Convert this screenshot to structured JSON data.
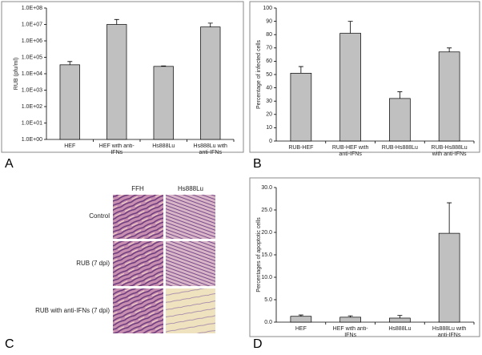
{
  "chart_data": [
    {
      "type": "bar",
      "ylabel": "RUB (pfu/ml)",
      "log_scale": true,
      "categories": [
        "HEF",
        "HEF with anti-IFNs",
        "Hs888Lu",
        "Hs888Lu with anti-IFNs"
      ],
      "values": [
        35000,
        10000000,
        28000,
        7000000
      ],
      "errors": [
        20000,
        10000000,
        2000,
        5000000
      ],
      "color": "#c0c0c0",
      "ylim": [
        1,
        100000000
      ],
      "yticks": [
        {
          "value": 1,
          "label": "1.0E+00"
        },
        {
          "value": 10,
          "label": "1.0E+01"
        },
        {
          "value": 100,
          "label": "1.0E+02"
        },
        {
          "value": 1000,
          "label": "1.0E+03"
        },
        {
          "value": 10000,
          "label": "1.0E+04"
        },
        {
          "value": 100000,
          "label": "1.0E+05"
        },
        {
          "value": 1000000,
          "label": "1.0E+06"
        },
        {
          "value": 10000000,
          "label": "1.0E+07"
        },
        {
          "value": 100000000,
          "label": "1.0E+08"
        }
      ]
    },
    {
      "type": "bar",
      "ylabel": "Percentage of infected cells",
      "log_scale": false,
      "categories": [
        "RUB-HEF",
        "RUB-HEF with anti-IFNs",
        "RUB-Hs888Lu",
        "RUB-Hs888Lu with anti-IFNs"
      ],
      "values": [
        51,
        81,
        32,
        67
      ],
      "errors": [
        5,
        9,
        5,
        3
      ],
      "color": "#c0c0c0",
      "ylim": [
        0,
        100
      ],
      "yticks": [
        0,
        10,
        20,
        30,
        40,
        50,
        60,
        70,
        80,
        90,
        100
      ]
    },
    {
      "type": "bar",
      "ylabel": "Percentages of apoptotic cells",
      "log_scale": false,
      "categories": [
        "HEF",
        "HEF with anti-IFNs",
        "Hs888Lu",
        "Hs888Lu with anti-IFNs"
      ],
      "values": [
        1.3,
        1.1,
        0.9,
        19.8
      ],
      "errors": [
        0.3,
        0.3,
        0.6,
        6.8
      ],
      "color": "#c0c0c0",
      "ylim": [
        0,
        30
      ],
      "yticks": [
        {
          "value": 0,
          "label": "0.0"
        },
        {
          "value": 5,
          "label": "5.0"
        },
        {
          "value": 10,
          "label": "10.0"
        },
        {
          "value": 15,
          "label": "15.0"
        },
        {
          "value": 20,
          "label": "20.0"
        },
        {
          "value": 25,
          "label": "25.0"
        },
        {
          "value": 30,
          "label": "30.0"
        }
      ]
    }
  ],
  "panel_c": {
    "columns": [
      "FFH",
      "Hs888Lu"
    ],
    "rows": [
      "Control",
      "RUB (7 dpi)",
      "RUB with anti-IFNs (7 dpi)"
    ]
  },
  "panel_labels": [
    "A",
    "B",
    "C",
    "D"
  ]
}
